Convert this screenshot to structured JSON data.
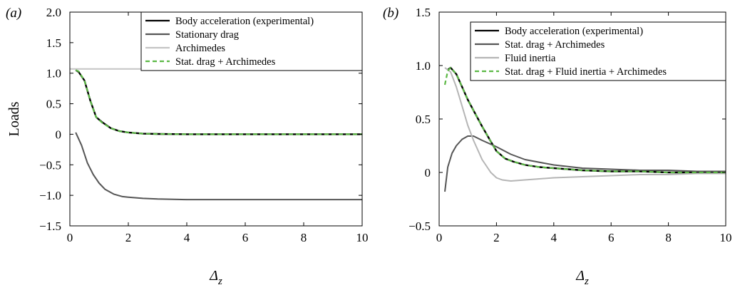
{
  "chart_data": [
    {
      "type": "line",
      "panel_label": "(a)",
      "ylabel": "Loads",
      "xlabel": "Δz",
      "xlim": [
        0,
        10
      ],
      "ylim": [
        -1.5,
        2.0
      ],
      "xticks": [
        0,
        2,
        4,
        6,
        8,
        10
      ],
      "xtick_labels": [
        "0",
        "2",
        "4",
        "6",
        "8",
        "10"
      ],
      "yticks": [
        -1.5,
        -1.0,
        -0.5,
        0,
        0.5,
        1.0,
        1.5,
        2.0
      ],
      "ytick_labels": [
        "−1.5",
        "−1.0",
        "−0.5",
        "0",
        "0.5",
        "1.0",
        "1.5",
        "2.0"
      ],
      "grid": false,
      "legend_position": "top-right",
      "series": [
        {
          "name": "Body acceleration (experimental)",
          "color": "#000000",
          "dash": "solid",
          "x": [
            0.2,
            0.3,
            0.5,
            0.7,
            0.9,
            1.1,
            1.4,
            1.7,
            2.0,
            2.5,
            3,
            4,
            5,
            6,
            7,
            8,
            9,
            10
          ],
          "y": [
            1.05,
            1.02,
            0.88,
            0.55,
            0.28,
            0.2,
            0.1,
            0.05,
            0.03,
            0.01,
            0.005,
            0.0,
            0.0,
            0.0,
            0.0,
            0.0,
            0.0,
            0.0
          ]
        },
        {
          "name": "Stationary drag",
          "color": "#555555",
          "dash": "solid",
          "x": [
            0.2,
            0.4,
            0.6,
            0.8,
            1.0,
            1.2,
            1.5,
            1.8,
            2.0,
            2.5,
            3,
            4,
            5,
            6,
            7,
            8,
            9,
            10
          ],
          "y": [
            0.03,
            -0.18,
            -0.47,
            -0.66,
            -0.8,
            -0.9,
            -0.98,
            -1.02,
            -1.03,
            -1.05,
            -1.06,
            -1.07,
            -1.07,
            -1.07,
            -1.07,
            -1.07,
            -1.07,
            -1.07
          ]
        },
        {
          "name": "Archimedes",
          "color": "#c4c4c4",
          "dash": "solid",
          "x": [
            0,
            10
          ],
          "y": [
            1.07,
            1.07
          ]
        },
        {
          "name": "Stat. drag + Archimedes",
          "color": "#5cb845",
          "dash": "dashed",
          "x": [
            0.2,
            0.3,
            0.5,
            0.7,
            0.9,
            1.1,
            1.4,
            1.7,
            2.0,
            2.5,
            3,
            4,
            5,
            6,
            7,
            8,
            9,
            10
          ],
          "y": [
            1.05,
            1.03,
            0.88,
            0.55,
            0.28,
            0.19,
            0.1,
            0.05,
            0.03,
            0.01,
            0.005,
            0.0,
            0.0,
            0.0,
            0.0,
            0.0,
            0.0,
            0.0
          ]
        }
      ]
    },
    {
      "type": "line",
      "panel_label": "(b)",
      "ylabel": "",
      "xlabel": "Δz",
      "xlim": [
        0,
        10
      ],
      "ylim": [
        -0.5,
        1.5
      ],
      "xticks": [
        0,
        2,
        4,
        6,
        8,
        10
      ],
      "xtick_labels": [
        "0",
        "2",
        "4",
        "6",
        "8",
        "10"
      ],
      "yticks": [
        -0.5,
        0,
        0.5,
        1.0,
        1.5
      ],
      "ytick_labels": [
        "−0.5",
        "0",
        "0.5",
        "1.0",
        "1.5"
      ],
      "grid": false,
      "legend_position": "top-right",
      "series": [
        {
          "name": "Body acceleration (experimental)",
          "color": "#000000",
          "dash": "solid",
          "x": [
            0.3,
            0.4,
            0.6,
            0.8,
            1.0,
            1.2,
            1.5,
            1.8,
            2.0,
            2.3,
            2.6,
            3,
            3.5,
            4,
            5,
            6,
            7,
            8,
            9,
            10
          ],
          "y": [
            0.96,
            0.98,
            0.92,
            0.8,
            0.68,
            0.58,
            0.43,
            0.29,
            0.2,
            0.13,
            0.1,
            0.07,
            0.05,
            0.04,
            0.02,
            0.01,
            0.01,
            0.0,
            0.0,
            0.0
          ]
        },
        {
          "name": "Stat. drag + Archimedes",
          "color": "#555555",
          "dash": "solid",
          "x": [
            0.2,
            0.3,
            0.45,
            0.6,
            0.8,
            1.0,
            1.2,
            1.5,
            2.0,
            2.5,
            3,
            4,
            5,
            6,
            7,
            8,
            9,
            10
          ],
          "y": [
            -0.18,
            0.05,
            0.18,
            0.25,
            0.31,
            0.34,
            0.34,
            0.3,
            0.24,
            0.17,
            0.12,
            0.07,
            0.04,
            0.03,
            0.02,
            0.02,
            0.01,
            0.01
          ]
        },
        {
          "name": "Fluid inertia",
          "color": "#b5b5b5",
          "dash": "solid",
          "x": [
            0.2,
            0.4,
            0.6,
            0.8,
            1.0,
            1.2,
            1.5,
            1.8,
            2.0,
            2.2,
            2.5,
            3,
            3.5,
            4,
            5,
            6,
            7,
            8,
            9,
            10
          ],
          "y": [
            0.98,
            0.94,
            0.8,
            0.62,
            0.44,
            0.3,
            0.12,
            0.0,
            -0.05,
            -0.07,
            -0.08,
            -0.07,
            -0.06,
            -0.05,
            -0.04,
            -0.03,
            -0.02,
            -0.02,
            -0.01,
            -0.01
          ]
        },
        {
          "name": "Stat. drag + Fluid inertia + Archimedes",
          "color": "#5cb845",
          "dash": "dashed",
          "x": [
            0.2,
            0.3,
            0.4,
            0.6,
            0.8,
            1.0,
            1.2,
            1.5,
            1.8,
            2.0,
            2.3,
            2.6,
            3,
            3.5,
            4,
            5,
            6,
            7,
            8,
            9,
            10
          ],
          "y": [
            0.82,
            0.95,
            0.98,
            0.92,
            0.8,
            0.68,
            0.58,
            0.43,
            0.29,
            0.2,
            0.13,
            0.1,
            0.07,
            0.05,
            0.04,
            0.02,
            0.01,
            0.01,
            0.0,
            0.0,
            0.0
          ]
        }
      ]
    }
  ]
}
